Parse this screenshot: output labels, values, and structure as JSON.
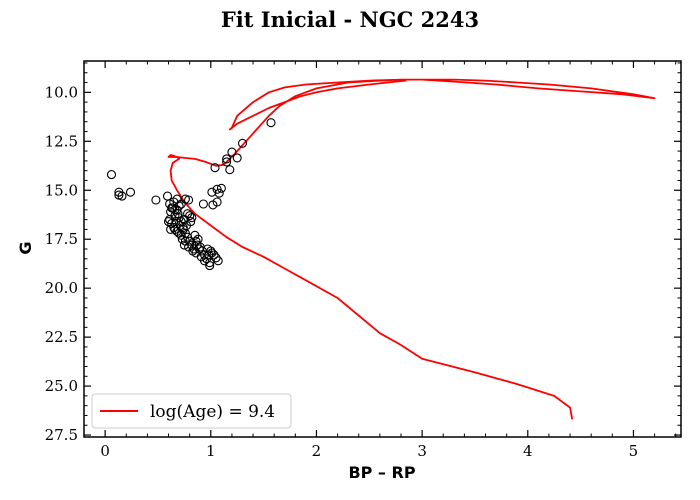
{
  "chart_data": {
    "type": "scatter",
    "title": "Fit Inicial - NGC 2243",
    "xlabel": "BP – RP",
    "ylabel": "G",
    "xlim": [
      -0.2,
      5.45
    ],
    "ylim": [
      27.6,
      8.4
    ],
    "y_inverted": true,
    "xticks": [
      0,
      1,
      2,
      3,
      4,
      5
    ],
    "xtick_labels": [
      "0",
      "1",
      "2",
      "3",
      "4",
      "5"
    ],
    "yticks": [
      10.0,
      12.5,
      15.0,
      17.5,
      20.0,
      22.5,
      25.0,
      27.5
    ],
    "ytick_labels": [
      "10.0",
      "12.5",
      "15.0",
      "17.5",
      "20.0",
      "22.5",
      "25.0",
      "27.5"
    ],
    "grid": false,
    "legend_position": "lower-left",
    "legend": [
      {
        "label": "log(Age) = 9.4",
        "color": "#ff0000"
      }
    ],
    "scatter": {
      "marker": "open-circle",
      "color": "#000000",
      "points": [
        [
          0.06,
          14.2
        ],
        [
          0.13,
          15.1
        ],
        [
          0.16,
          15.3
        ],
        [
          0.13,
          15.25
        ],
        [
          0.24,
          15.1
        ],
        [
          0.48,
          15.5
        ],
        [
          0.59,
          15.3
        ],
        [
          0.68,
          15.45
        ],
        [
          0.76,
          15.45
        ],
        [
          0.79,
          15.5
        ],
        [
          1.01,
          15.1
        ],
        [
          1.06,
          14.95
        ],
        [
          1.1,
          14.9
        ],
        [
          1.08,
          15.15
        ],
        [
          1.06,
          15.6
        ],
        [
          1.02,
          15.75
        ],
        [
          0.93,
          15.7
        ],
        [
          1.04,
          13.85
        ],
        [
          1.15,
          13.4
        ],
        [
          1.2,
          13.05
        ],
        [
          1.25,
          13.35
        ],
        [
          1.3,
          12.6
        ],
        [
          1.18,
          13.95
        ],
        [
          1.57,
          11.55
        ],
        [
          1.15,
          13.55
        ],
        [
          0.61,
          15.7
        ],
        [
          0.64,
          15.9
        ],
        [
          0.62,
          16.1
        ],
        [
          0.66,
          16.3
        ],
        [
          0.61,
          16.5
        ],
        [
          0.63,
          16.7
        ],
        [
          0.65,
          16.9
        ],
        [
          0.68,
          17.1
        ],
        [
          0.66,
          16.0
        ],
        [
          0.69,
          16.2
        ],
        [
          0.7,
          16.4
        ],
        [
          0.72,
          16.6
        ],
        [
          0.71,
          16.8
        ],
        [
          0.74,
          17.0
        ],
        [
          0.76,
          17.2
        ],
        [
          0.78,
          17.4
        ],
        [
          0.8,
          17.6
        ],
        [
          0.82,
          17.8
        ],
        [
          0.84,
          18.0
        ],
        [
          0.86,
          18.2
        ],
        [
          0.88,
          17.5
        ],
        [
          0.9,
          17.9
        ],
        [
          0.92,
          18.1
        ],
        [
          0.94,
          18.3
        ],
        [
          0.96,
          18.5
        ],
        [
          0.99,
          18.7
        ],
        [
          0.99,
          18.85
        ],
        [
          0.94,
          18.6
        ],
        [
          1.01,
          18.2
        ],
        [
          1.03,
          18.3
        ],
        [
          1.05,
          18.45
        ],
        [
          1.07,
          18.6
        ],
        [
          0.75,
          16.5
        ],
        [
          0.77,
          16.8
        ],
        [
          0.73,
          17.5
        ],
        [
          0.81,
          16.6
        ],
        [
          0.8,
          16.3
        ],
        [
          0.85,
          17.3
        ],
        [
          0.63,
          15.9
        ],
        [
          0.65,
          15.6
        ],
        [
          0.7,
          15.8
        ],
        [
          0.67,
          16.6
        ],
        [
          0.68,
          16.0
        ],
        [
          0.72,
          17.3
        ],
        [
          0.74,
          16.9
        ],
        [
          0.76,
          17.6
        ],
        [
          0.79,
          17.9
        ],
        [
          0.83,
          18.1
        ],
        [
          0.87,
          17.8
        ],
        [
          0.89,
          18.0
        ],
        [
          0.91,
          18.4
        ],
        [
          0.97,
          18.0
        ],
        [
          0.98,
          18.3
        ],
        [
          1.0,
          18.1
        ],
        [
          0.72,
          15.7
        ],
        [
          0.66,
          17.0
        ],
        [
          0.7,
          17.2
        ],
        [
          0.6,
          16.6
        ],
        [
          0.62,
          17.0
        ],
        [
          0.75,
          17.8
        ],
        [
          0.78,
          16.2
        ],
        [
          0.82,
          16.4
        ],
        [
          0.86,
          17.6
        ]
      ]
    },
    "series": [
      {
        "name": "log(Age) = 9.4",
        "color": "#ff0000",
        "x": [
          4.42,
          4.4,
          4.25,
          3.9,
          3.5,
          3.0,
          2.8,
          2.6,
          2.2,
          1.9,
          1.7,
          1.5,
          1.3,
          1.15,
          1.0,
          0.85,
          0.75,
          0.68,
          0.63,
          0.62,
          0.64,
          0.7,
          0.68,
          0.6,
          0.62,
          0.68,
          0.75,
          0.85,
          0.95,
          1.05,
          1.12,
          1.18,
          1.25,
          1.35,
          1.45,
          1.55,
          1.65,
          1.8,
          2.0,
          2.3,
          2.6,
          2.8,
          3.0,
          3.3,
          3.6,
          3.9,
          4.2,
          4.6,
          5.0,
          5.2,
          4.9,
          4.5,
          4.1,
          3.7,
          3.3,
          3.0,
          2.8,
          2.5,
          2.2,
          1.9,
          1.7,
          1.55,
          1.4,
          1.25,
          1.2,
          1.18,
          1.25,
          1.4,
          1.55,
          1.7,
          1.85,
          2.0,
          2.2,
          2.5,
          2.75,
          2.85
        ],
        "y": [
          26.7,
          26.1,
          25.5,
          24.9,
          24.3,
          23.6,
          22.9,
          22.3,
          20.5,
          19.6,
          19.0,
          18.4,
          17.9,
          17.4,
          16.8,
          16.2,
          15.6,
          15.0,
          14.5,
          14.0,
          13.6,
          13.4,
          13.3,
          13.3,
          13.2,
          13.3,
          13.35,
          13.4,
          13.55,
          13.75,
          13.7,
          13.4,
          13.0,
          12.4,
          11.8,
          11.2,
          10.7,
          10.2,
          9.8,
          9.5,
          9.4,
          9.35,
          9.35,
          9.35,
          9.4,
          9.5,
          9.6,
          9.8,
          10.1,
          10.3,
          10.1,
          9.95,
          9.8,
          9.6,
          9.45,
          9.35,
          9.35,
          9.4,
          9.5,
          9.6,
          9.75,
          10.0,
          10.5,
          11.2,
          11.8,
          11.9,
          11.6,
          11.2,
          10.8,
          10.5,
          10.2,
          10.0,
          9.8,
          9.6,
          9.45,
          9.4
        ]
      }
    ]
  }
}
